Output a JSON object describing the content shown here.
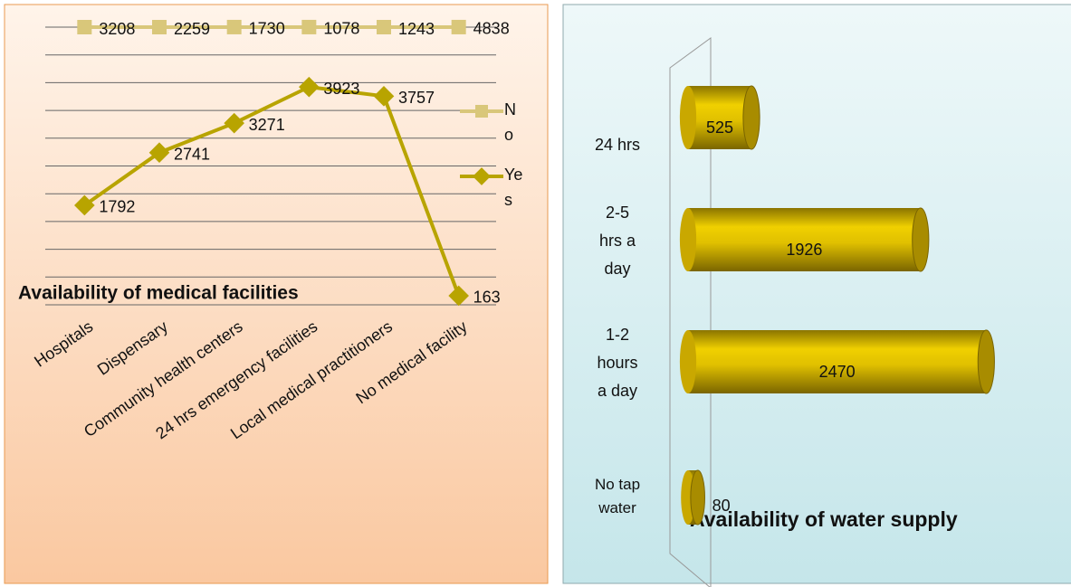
{
  "chart_data": [
    {
      "type": "line",
      "stacked": true,
      "title": "Availability of medical facilities",
      "categories": [
        "Hospitals",
        "Dispensary",
        "Community health centers",
        "24 hrs emergency facilities",
        "Local medical practitioners",
        "No medical facility"
      ],
      "series": [
        {
          "name": "Yes",
          "color": "#b8a400",
          "values": [
            1792,
            2741,
            3271,
            3923,
            3757,
            163
          ]
        },
        {
          "name": "No",
          "color": "#d9c77a",
          "values": [
            3208,
            2259,
            1730,
            1078,
            1243,
            4838
          ]
        }
      ],
      "ylim": [
        0,
        5000
      ],
      "yticks": [
        0,
        500,
        1000,
        1500,
        2000,
        2500,
        3000,
        3500,
        4000,
        4500,
        5000
      ],
      "grid": true,
      "legend": "right"
    },
    {
      "type": "hbar",
      "title": "Availability of water supply",
      "categories": [
        "24 hrs",
        "2-5 hrs a day",
        "1-2 hours a day",
        "No tap water"
      ],
      "values": [
        525,
        1926,
        2470,
        80
      ],
      "color": "#e0c000",
      "xlim": [
        0,
        3000
      ]
    }
  ]
}
